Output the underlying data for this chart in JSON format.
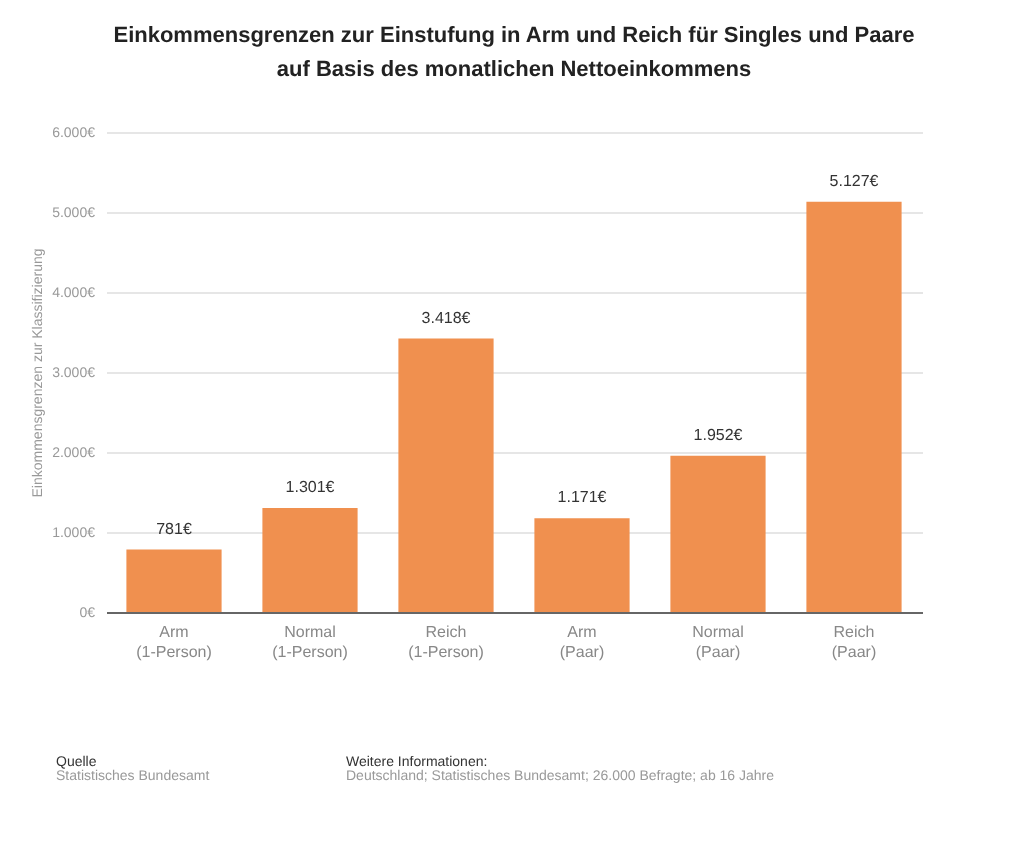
{
  "chart_data": {
    "type": "bar",
    "title": "Einkommensgrenzen zur Einstufung in Arm und Reich für Singles und Paare auf Basis des monatlichen Nettoeinkommens",
    "ylabel": "Einkommensgrenzen zur Klassifizierung",
    "categories": [
      "Arm (1-Person)",
      "Normal (1-Person)",
      "Reich (1-Person)",
      "Arm (Paar)",
      "Normal (Paar)",
      "Reich (Paar)"
    ],
    "values": [
      781,
      1301,
      3418,
      1171,
      1952,
      5127
    ],
    "value_labels": [
      "781€",
      "1.301€",
      "3.418€",
      "1.171€",
      "1.952€",
      "5.127€"
    ],
    "color": "#f0904f",
    "ylim": [
      0,
      6000
    ],
    "yticks": [
      {
        "value": 0,
        "label": "0€"
      },
      {
        "value": 1000,
        "label": "1.000€"
      },
      {
        "value": 2000,
        "label": "2.000€"
      },
      {
        "value": 3000,
        "label": "3.000€"
      },
      {
        "value": 4000,
        "label": "4.000€"
      },
      {
        "value": 5000,
        "label": "5.000€"
      },
      {
        "value": 6000,
        "label": "6.000€"
      }
    ],
    "grid": "y",
    "annotations": [
      "Quelle",
      "Statistisches Bundesamt",
      "Weitere Informationen:",
      "Deutschland; Statistisches Bundesamt; 26.000 Befragte; ab 16 Jahre"
    ]
  }
}
